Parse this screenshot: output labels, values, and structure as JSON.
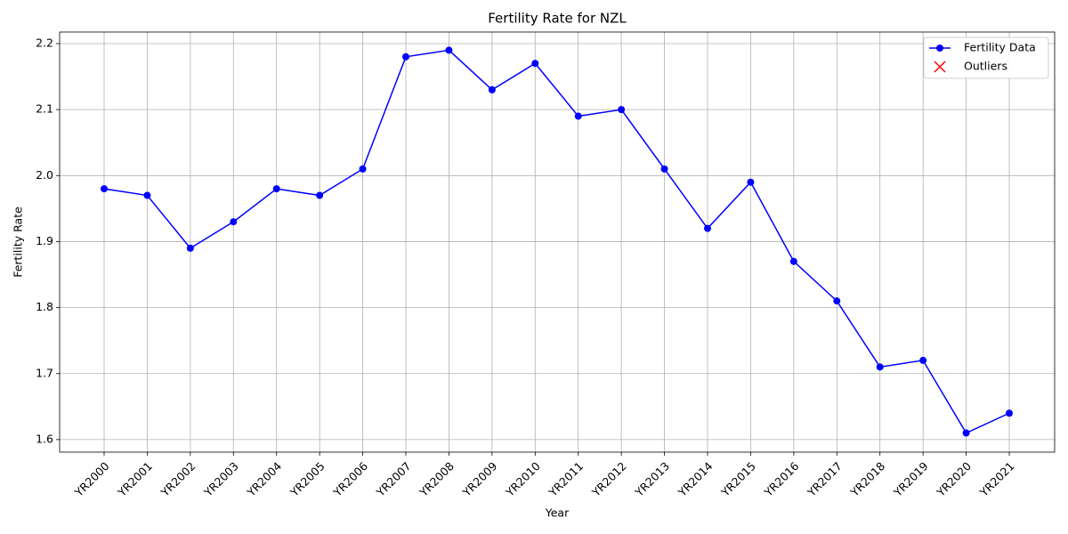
{
  "chart_data": {
    "type": "line",
    "title": "Fertility Rate for NZL",
    "x_label": "Year",
    "y_label": "Fertility Rate",
    "categories": [
      "YR2000",
      "YR2001",
      "YR2002",
      "YR2003",
      "YR2004",
      "YR2005",
      "YR2006",
      "YR2007",
      "YR2008",
      "YR2009",
      "YR2010",
      "YR2011",
      "YR2012",
      "YR2013",
      "YR2014",
      "YR2015",
      "YR2016",
      "YR2017",
      "YR2018",
      "YR2019",
      "YR2020",
      "YR2021"
    ],
    "series": [
      {
        "name": "Fertility Data",
        "color": "#0000ff",
        "marker": "o",
        "values": [
          1.98,
          1.97,
          1.89,
          1.93,
          1.98,
          1.97,
          2.01,
          2.18,
          2.19,
          2.13,
          2.17,
          2.09,
          2.1,
          2.01,
          1.92,
          1.99,
          1.87,
          1.81,
          1.71,
          1.72,
          1.61,
          1.64
        ]
      },
      {
        "name": "Outliers",
        "color": "#ff0000",
        "marker": "x",
        "values": [
          null,
          null,
          null,
          null,
          null,
          null,
          null,
          null,
          null,
          null,
          null,
          null,
          null,
          null,
          null,
          null,
          null,
          null,
          null,
          null,
          null,
          null
        ]
      }
    ],
    "ylim": [
      1.581,
      2.2175
    ],
    "yticks": [
      1.6,
      1.7,
      1.8,
      1.9,
      {
        "value": 2,
        "label": "2.0"
      },
      2.1,
      2.2
    ],
    "grid": true,
    "legend": "upper right"
  }
}
